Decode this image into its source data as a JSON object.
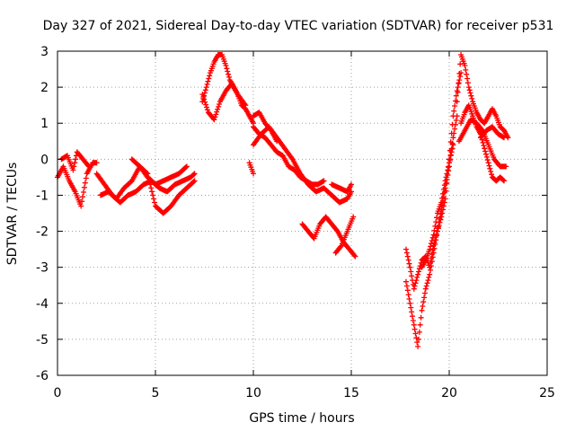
{
  "chart_data": {
    "type": "scatter",
    "title": "Day 327 of 2021, Sidereal Day-to-day VTEC variation (SDTVAR) for receiver p531",
    "xlabel": "GPS time / hours",
    "ylabel": "SDTVAR / TECUs",
    "xlim": [
      0,
      25
    ],
    "ylim": [
      -6,
      3
    ],
    "xticks": [
      0,
      5,
      10,
      15,
      20,
      25
    ],
    "yticks": [
      -6,
      -5,
      -4,
      -3,
      -2,
      -1,
      0,
      1,
      2,
      3
    ],
    "grid": true,
    "marker": "+",
    "color": "#ff0000",
    "series": [
      {
        "name": "SDTVAR",
        "segments": [
          {
            "x": [
              0.0,
              0.3,
              0.6,
              0.9,
              1.2,
              1.5,
              1.8,
              2.0
            ],
            "y": [
              -0.5,
              -0.2,
              -0.6,
              -0.9,
              -1.3,
              -0.4,
              -0.1,
              -0.1
            ]
          },
          {
            "x": [
              0.2,
              0.5,
              0.8,
              1.0,
              1.3,
              1.6
            ],
            "y": [
              0.0,
              0.1,
              -0.3,
              0.2,
              0.0,
              -0.2
            ]
          },
          {
            "x": [
              2.0,
              2.4,
              2.8,
              3.2,
              3.6,
              4.0,
              4.4,
              4.8,
              5.2,
              5.6,
              6.0,
              6.4,
              6.8,
              7.0
            ],
            "y": [
              -0.4,
              -0.7,
              -1.0,
              -1.2,
              -1.0,
              -0.9,
              -0.7,
              -0.6,
              -0.8,
              -0.9,
              -0.7,
              -0.6,
              -0.5,
              -0.4
            ]
          },
          {
            "x": [
              2.2,
              2.6,
              3.0,
              3.4,
              3.8,
              4.2,
              4.6,
              5.0,
              5.4,
              5.8,
              6.2,
              6.6,
              7.0
            ],
            "y": [
              -1.0,
              -0.9,
              -1.1,
              -0.8,
              -0.6,
              -0.2,
              -0.4,
              -1.3,
              -1.5,
              -1.3,
              -1.0,
              -0.8,
              -0.6
            ]
          },
          {
            "x": [
              3.8,
              4.2,
              4.6,
              5.0,
              5.4,
              5.8,
              6.2,
              6.6
            ],
            "y": [
              0.0,
              -0.2,
              -0.5,
              -0.7,
              -0.6,
              -0.5,
              -0.4,
              -0.2
            ]
          },
          {
            "x": [
              7.4,
              7.6,
              7.8,
              8.0,
              8.2,
              8.4,
              8.6,
              8.8,
              9.0,
              9.2,
              9.4,
              9.6,
              9.8,
              10.0
            ],
            "y": [
              1.6,
              2.0,
              2.4,
              2.7,
              2.9,
              2.9,
              2.6,
              2.2,
              2.0,
              1.8,
              1.5,
              1.4,
              1.2,
              1.0
            ]
          },
          {
            "x": [
              7.4,
              7.7,
              8.0,
              8.3,
              8.6,
              8.9,
              9.2,
              9.6
            ],
            "y": [
              1.8,
              1.3,
              1.1,
              1.6,
              1.9,
              2.1,
              1.8,
              1.5
            ]
          },
          {
            "x": [
              10.0,
              10.3,
              10.6,
              10.9,
              11.2,
              11.5,
              11.8,
              12.1,
              12.4,
              12.7,
              13.0,
              13.3,
              13.6
            ],
            "y": [
              0.9,
              0.7,
              0.6,
              0.4,
              0.2,
              0.1,
              -0.2,
              -0.3,
              -0.5,
              -0.6,
              -0.7,
              -0.7,
              -0.6
            ]
          },
          {
            "x": [
              10.0,
              10.4,
              10.8,
              11.2,
              11.6,
              12.0,
              12.4,
              12.8,
              13.2,
              13.6,
              14.0,
              14.4,
              14.8,
              15.0
            ],
            "y": [
              0.4,
              0.7,
              0.9,
              0.6,
              0.3,
              0.0,
              -0.4,
              -0.7,
              -0.9,
              -0.8,
              -1.0,
              -1.2,
              -1.1,
              -0.9
            ]
          },
          {
            "x": [
              10.0,
              10.3,
              10.6,
              10.9,
              11.2
            ],
            "y": [
              1.2,
              1.3,
              1.0,
              0.8,
              0.5
            ]
          },
          {
            "x": [
              9.8,
              10.0
            ],
            "y": [
              -0.1,
              -0.4
            ]
          },
          {
            "x": [
              12.5,
              12.8,
              13.1,
              13.4,
              13.7,
              14.0,
              14.3,
              14.6,
              14.9,
              15.2
            ],
            "y": [
              -1.8,
              -2.0,
              -2.2,
              -1.8,
              -1.6,
              -1.8,
              -2.0,
              -2.3,
              -2.5,
              -2.7
            ]
          },
          {
            "x": [
              14.2,
              14.5,
              14.8,
              15.1
            ],
            "y": [
              -2.6,
              -2.4,
              -2.0,
              -1.6
            ]
          },
          {
            "x": [
              14.0,
              14.4,
              14.8,
              15.0
            ],
            "y": [
              -0.7,
              -0.8,
              -0.9,
              -0.7
            ]
          },
          {
            "x": [
              17.8,
              18.0,
              18.2,
              18.4,
              18.6,
              18.8,
              19.0,
              19.2,
              19.4,
              19.6,
              19.8,
              20.0,
              20.2,
              20.4
            ],
            "y": [
              -3.4,
              -4.0,
              -4.6,
              -5.2,
              -4.2,
              -3.6,
              -3.2,
              -2.6,
              -2.0,
              -1.4,
              -0.8,
              -0.2,
              0.6,
              1.2
            ]
          },
          {
            "x": [
              17.8,
              18.0,
              18.2,
              18.4,
              18.6,
              18.8,
              19.0,
              19.2,
              19.4,
              19.6,
              19.8,
              20.0,
              20.2,
              20.4,
              20.6
            ],
            "y": [
              -2.5,
              -3.0,
              -3.6,
              -3.2,
              -2.8,
              -2.7,
              -3.0,
              -2.4,
              -2.0,
              -1.6,
              -1.1,
              0.0,
              1.2,
              1.9,
              2.4
            ]
          },
          {
            "x": [
              18.6,
              18.8,
              19.0,
              19.2,
              19.4,
              19.6,
              19.8,
              20.0,
              20.2
            ],
            "y": [
              -3.0,
              -2.8,
              -2.5,
              -2.1,
              -1.5,
              -1.2,
              -0.6,
              -0.1,
              0.4
            ]
          },
          {
            "x": [
              20.4,
              20.6,
              20.8,
              21.0,
              21.2,
              21.4,
              21.6,
              21.8,
              22.0,
              22.2,
              22.4,
              22.6,
              22.8,
              23.0
            ],
            "y": [
              1.6,
              2.9,
              2.6,
              2.0,
              1.6,
              1.3,
              1.1,
              1.0,
              1.2,
              1.4,
              1.2,
              0.9,
              0.8,
              0.6
            ]
          },
          {
            "x": [
              20.6,
              20.8,
              21.0,
              21.2,
              21.4,
              21.6,
              21.8,
              22.0,
              22.2,
              22.4,
              22.6,
              22.8
            ],
            "y": [
              1.0,
              1.3,
              1.5,
              1.2,
              0.9,
              0.7,
              0.3,
              -0.1,
              -0.5,
              -0.6,
              -0.5,
              -0.6
            ]
          },
          {
            "x": [
              20.5,
              20.8,
              21.1,
              21.4,
              21.7,
              22.0,
              22.3,
              22.6,
              22.9
            ],
            "y": [
              0.5,
              0.8,
              1.1,
              1.0,
              0.8,
              0.4,
              0.0,
              -0.2,
              -0.2
            ]
          },
          {
            "x": [
              21.6,
              21.9,
              22.2,
              22.5,
              22.8
            ],
            "y": [
              0.6,
              0.8,
              0.9,
              0.7,
              0.6
            ]
          }
        ]
      }
    ]
  }
}
